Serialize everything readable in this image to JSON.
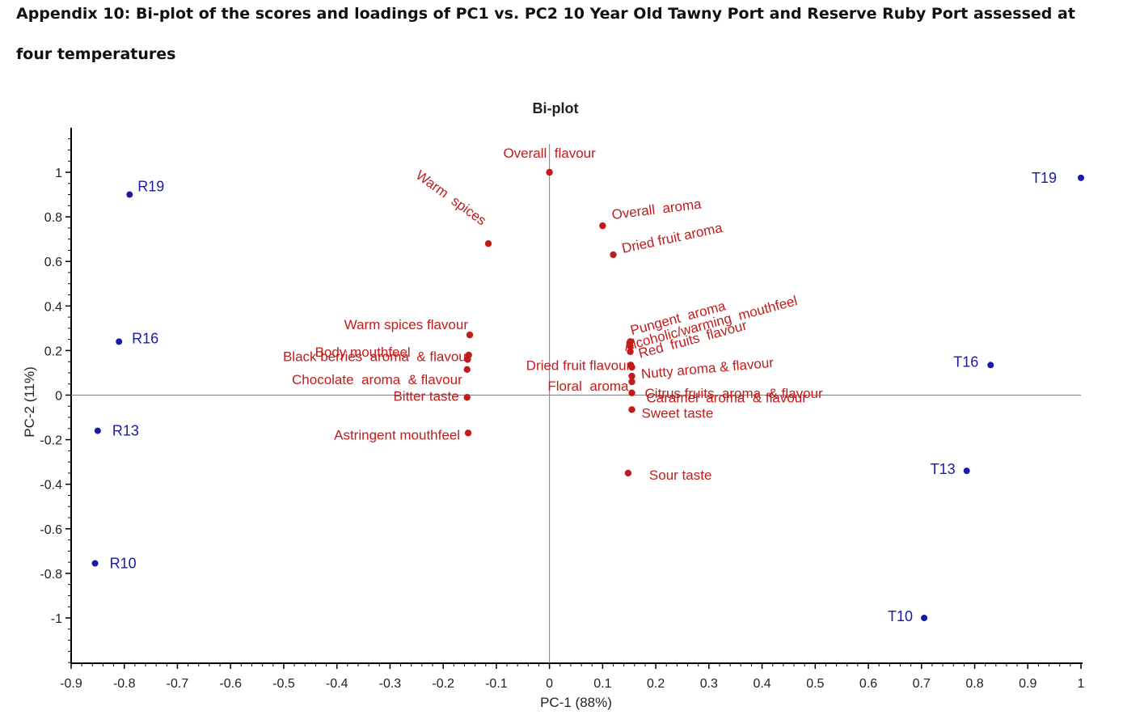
{
  "caption": {
    "line1": "Appendix 10: Bi-plot of the scores and loadings of PC1 vs. PC2 10 Year Old Tawny Port and Reserve Ruby Port assessed at",
    "line2": "four temperatures"
  },
  "chart_data": {
    "type": "scatter",
    "title": "Bi-plot",
    "xlabel": "PC-1 (88%)",
    "ylabel": "PC-2 (11%)",
    "xlim": [
      -0.9,
      1
    ],
    "ylim": [
      -1.2,
      1.2
    ],
    "x_ticks": [
      -0.9,
      -0.8,
      -0.7,
      -0.6,
      -0.5,
      -0.4,
      -0.3,
      -0.2,
      -0.1,
      0,
      0.1,
      0.2,
      0.3,
      0.4,
      0.5,
      0.6,
      0.7,
      0.8,
      0.9,
      1
    ],
    "y_ticks": [
      1,
      0.8,
      0.6,
      0.4,
      0.2,
      0,
      -0.2,
      -0.4,
      -0.6,
      -0.8,
      -1
    ],
    "reference_lines": {
      "x": 0,
      "y": 0
    },
    "grid": false,
    "colors": {
      "scores": "#1a1aa6",
      "loadings": "#c01c1c",
      "axis": "#000000",
      "reference": "#808080"
    },
    "series": [
      {
        "kind": "scores",
        "points": [
          {
            "label": "R19",
            "x": -0.79,
            "y": 0.9
          },
          {
            "label": "R16",
            "x": -0.81,
            "y": 0.24
          },
          {
            "label": "R13",
            "x": -0.85,
            "y": -0.16
          },
          {
            "label": "R10",
            "x": -0.855,
            "y": -0.755
          },
          {
            "label": "T19",
            "x": 1.0,
            "y": 0.975
          },
          {
            "label": "T16",
            "x": 0.83,
            "y": 0.135
          },
          {
            "label": "T13",
            "x": 0.785,
            "y": -0.34
          },
          {
            "label": "T10",
            "x": 0.705,
            "y": -1.0
          }
        ]
      },
      {
        "kind": "loadings",
        "points": [
          {
            "label": "Overall  flavour",
            "x": 0.0,
            "y": 1.0
          },
          {
            "label": "Warm  spices",
            "x": -0.115,
            "y": 0.68
          },
          {
            "label": "Overall  aroma",
            "x": 0.1,
            "y": 0.76
          },
          {
            "label": "Dried fruit aroma",
            "x": 0.12,
            "y": 0.63
          },
          {
            "label": "Warm spices flavour",
            "x": -0.15,
            "y": 0.27
          },
          {
            "label": "Body mouthfeel",
            "x": -0.152,
            "y": 0.18
          },
          {
            "label": "Black berries  aroma  & flavour",
            "x": -0.154,
            "y": 0.16
          },
          {
            "label": "Chocolate  aroma  & flavour",
            "x": -0.155,
            "y": 0.115
          },
          {
            "label": "Bitter taste",
            "x": -0.155,
            "y": -0.01
          },
          {
            "label": "Astringent mouthfeel",
            "x": -0.153,
            "y": -0.17
          },
          {
            "label": "Pungent  aroma",
            "x": 0.152,
            "y": 0.24
          },
          {
            "label": "Alcoholic/warming  mouthfeel",
            "x": 0.152,
            "y": 0.22
          },
          {
            "label": "Red  fruits  flavour",
            "x": 0.152,
            "y": 0.195
          },
          {
            "label": "Dried fruit flavour",
            "x": 0.153,
            "y": 0.135
          },
          {
            "label": "Nutty aroma & flavour",
            "x": 0.155,
            "y": 0.125
          },
          {
            "label": "Floral  aroma",
            "x": 0.155,
            "y": 0.085
          },
          {
            "label": "Citrus fruits  aroma  & flavour",
            "x": 0.155,
            "y": 0.06
          },
          {
            "label": "Caramel  aroma  & flavour",
            "x": 0.155,
            "y": 0.01
          },
          {
            "label": "Sweet taste",
            "x": 0.155,
            "y": -0.065
          },
          {
            "label": "Sour taste",
            "x": 0.148,
            "y": -0.35
          }
        ]
      }
    ]
  }
}
